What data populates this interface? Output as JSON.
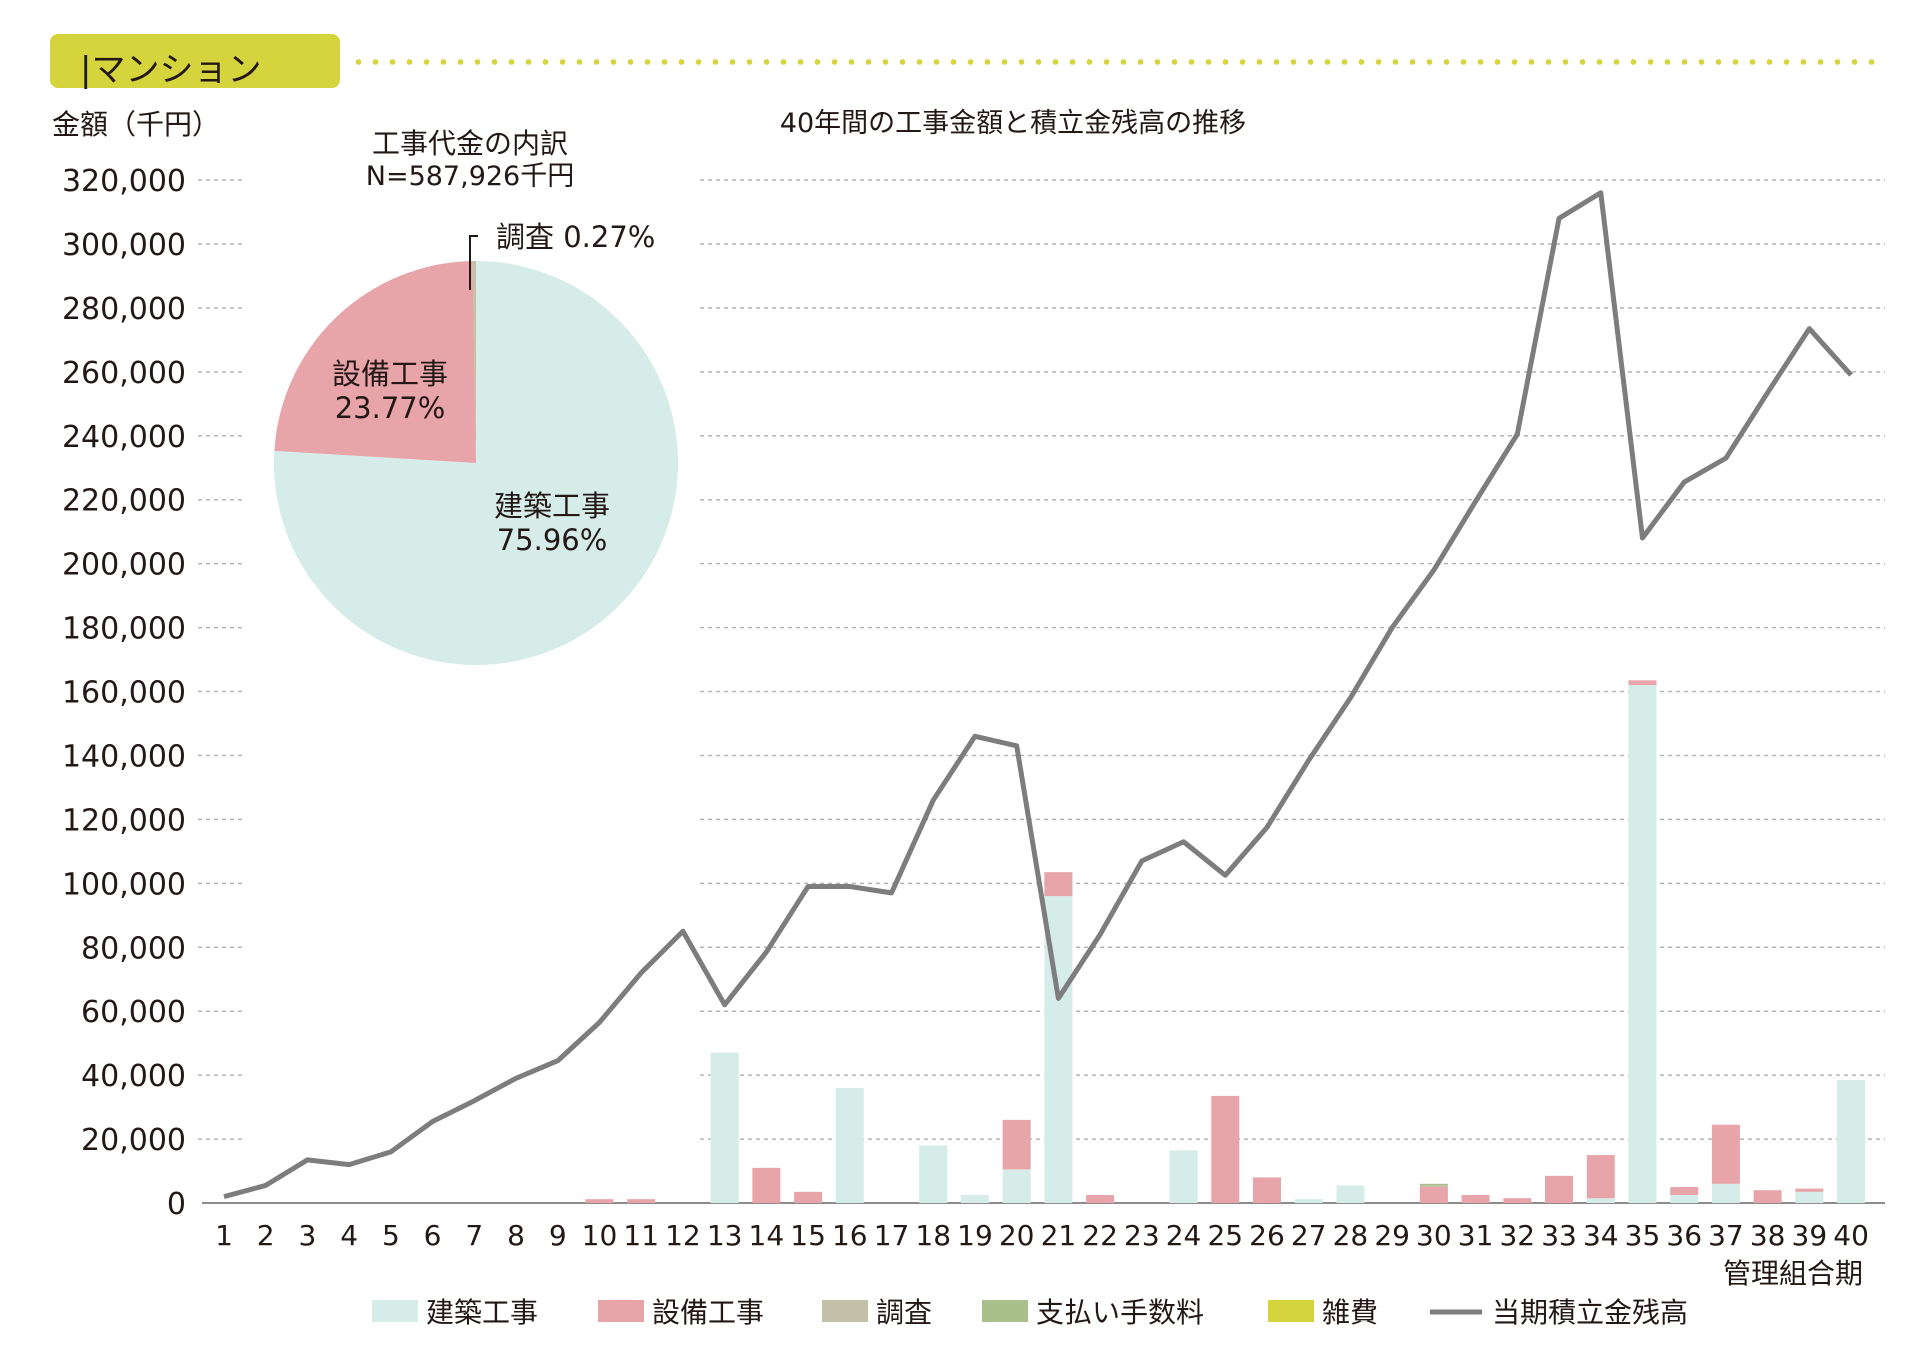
{
  "header": {
    "section_title": "|マンション"
  },
  "colors": {
    "building": "#d5ece8",
    "equipment": "#e7a4a9",
    "survey": "#c2c0a7",
    "fee": "#a9c08c",
    "misc": "#d6d43c",
    "balance_line": "#7d7d7d",
    "accent": "#d6d43c"
  },
  "pie": {
    "title": "工事代金の内訳",
    "subtitle": "N=587,926千円",
    "slices": [
      {
        "name": "建築工事",
        "label": "建築工事",
        "percent_label": "75.96%",
        "value": 75.96,
        "color": "#d5ece8"
      },
      {
        "name": "設備工事",
        "label": "設備工事",
        "percent_label": "23.77%",
        "value": 23.77,
        "color": "#e7a4a9"
      },
      {
        "name": "調査",
        "label": "調査 0.27%",
        "percent_label": "",
        "value": 0.27,
        "color": "#c2c0a7"
      }
    ]
  },
  "chart_data": [
    {
      "type": "pie",
      "title": "工事代金の内訳",
      "subtitle": "N=587,926千円",
      "categories": [
        "建築工事",
        "設備工事",
        "調査"
      ],
      "values": [
        75.96,
        23.77,
        0.27
      ]
    },
    {
      "type": "bar",
      "title": "40年間の工事金額と積立金残高の推移",
      "ylabel": "金額（千円）",
      "xlabel": "管理組合期",
      "ylim": [
        0,
        320000
      ],
      "yticks": [
        0,
        20000,
        40000,
        60000,
        80000,
        100000,
        120000,
        140000,
        160000,
        180000,
        200000,
        220000,
        240000,
        260000,
        280000,
        300000,
        320000
      ],
      "ytick_labels": [
        "0",
        "20,000",
        "40,000",
        "60,000",
        "80,000",
        "100,000",
        "120,000",
        "140,000",
        "160,000",
        "180,000",
        "200,000",
        "220,000",
        "240,000",
        "260,000",
        "280,000",
        "300,000",
        "320,000"
      ],
      "grid": true,
      "legend_position": "bottom",
      "categories": [
        "1",
        "2",
        "3",
        "4",
        "5",
        "6",
        "7",
        "8",
        "9",
        "10",
        "11",
        "12",
        "13",
        "14",
        "15",
        "16",
        "17",
        "18",
        "19",
        "20",
        "21",
        "22",
        "23",
        "24",
        "25",
        "26",
        "27",
        "28",
        "29",
        "30",
        "31",
        "32",
        "33",
        "34",
        "35",
        "36",
        "37",
        "38",
        "39",
        "40"
      ],
      "series": [
        {
          "name": "建築工事",
          "type": "stacked-bar",
          "color": "#d5ece8",
          "values": [
            0,
            0,
            0,
            0,
            0,
            0,
            0,
            0,
            0,
            0,
            0,
            0,
            47000,
            0,
            0,
            36000,
            0,
            18000,
            2500,
            10500,
            96000,
            0,
            0,
            16500,
            0,
            0,
            1200,
            5500,
            0,
            0,
            0,
            0,
            0,
            1500,
            162000,
            2500,
            6000,
            0,
            3500,
            38500
          ]
        },
        {
          "name": "設備工事",
          "type": "stacked-bar",
          "color": "#e7a4a9",
          "values": [
            0,
            0,
            0,
            0,
            0,
            0,
            0,
            0,
            0,
            1200,
            1200,
            0,
            0,
            11000,
            3500,
            0,
            0,
            0,
            0,
            15500,
            7500,
            2500,
            0,
            0,
            33500,
            8000,
            0,
            0,
            0,
            5000,
            2500,
            1500,
            8500,
            13500,
            1500,
            2500,
            18500,
            4000,
            1000,
            0
          ]
        },
        {
          "name": "調査",
          "type": "stacked-bar",
          "color": "#c2c0a7",
          "values": [
            0,
            0,
            0,
            0,
            0,
            0,
            0,
            0,
            0,
            0,
            0,
            0,
            0,
            0,
            0,
            0,
            0,
            0,
            0,
            0,
            0,
            0,
            0,
            0,
            0,
            0,
            0,
            0,
            0,
            500,
            0,
            0,
            0,
            0,
            0,
            0,
            0,
            0,
            0,
            0
          ]
        },
        {
          "name": "支払い手数料",
          "type": "stacked-bar",
          "color": "#a9c08c",
          "values": [
            0,
            0,
            0,
            0,
            0,
            0,
            0,
            0,
            0,
            0,
            0,
            0,
            0,
            0,
            0,
            0,
            0,
            0,
            0,
            0,
            0,
            0,
            0,
            0,
            0,
            0,
            0,
            0,
            0,
            500,
            0,
            0,
            0,
            0,
            0,
            0,
            0,
            0,
            0,
            0
          ]
        },
        {
          "name": "雑費",
          "type": "stacked-bar",
          "color": "#d6d43c",
          "values": [
            0,
            0,
            0,
            0,
            0,
            0,
            0,
            0,
            0,
            0,
            0,
            0,
            0,
            0,
            0,
            0,
            0,
            0,
            0,
            0,
            0,
            0,
            0,
            0,
            0,
            0,
            0,
            0,
            0,
            0,
            0,
            0,
            0,
            0,
            0,
            0,
            0,
            0,
            0,
            0
          ]
        },
        {
          "name": "当期積立金残高",
          "type": "line",
          "color": "#7d7d7d",
          "values": [
            2000,
            5500,
            13500,
            12000,
            16000,
            25500,
            32000,
            39000,
            44500,
            56500,
            72000,
            85000,
            62000,
            78500,
            99000,
            99000,
            97000,
            126000,
            146000,
            143000,
            64000,
            84000,
            107000,
            113000,
            102500,
            117500,
            138500,
            158000,
            180000,
            198000,
            219500,
            240500,
            308000,
            316000,
            208000,
            225500,
            233000,
            253500,
            273500,
            259000
          ]
        }
      ]
    }
  ]
}
